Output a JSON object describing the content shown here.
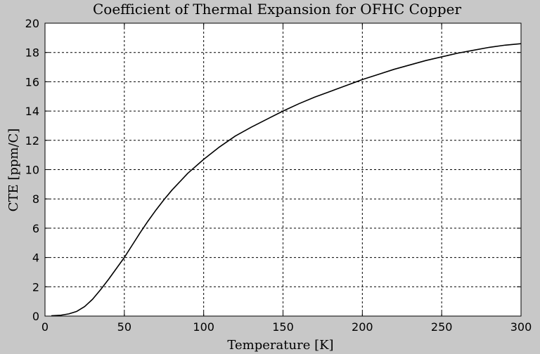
{
  "chart_data": {
    "type": "line",
    "title": "Coefficient of Thermal Expansion for OFHC Copper",
    "xlabel": "Temperature [K]",
    "ylabel": "CTE [ppm/C]",
    "xlim": [
      0,
      300
    ],
    "ylim": [
      0,
      20
    ],
    "xticks": [
      0,
      50,
      100,
      150,
      200,
      250,
      300
    ],
    "yticks": [
      0,
      2,
      4,
      6,
      8,
      10,
      12,
      14,
      16,
      18,
      20
    ],
    "grid": true,
    "legend": "none",
    "colors": {
      "background": "#c8c8c8",
      "plot_area": "#ffffff",
      "line": "#000000",
      "grid": "#000000"
    },
    "series": [
      {
        "x": [
          4,
          10,
          15,
          20,
          25,
          30,
          35,
          40,
          45,
          50,
          55,
          60,
          65,
          70,
          75,
          80,
          90,
          100,
          110,
          120,
          130,
          140,
          150,
          160,
          170,
          180,
          190,
          200,
          210,
          220,
          230,
          240,
          250,
          260,
          270,
          280,
          290,
          300
        ],
        "y": [
          0.02,
          0.06,
          0.15,
          0.32,
          0.65,
          1.15,
          1.8,
          2.5,
          3.25,
          4.0,
          4.85,
          5.7,
          6.5,
          7.25,
          7.95,
          8.6,
          9.75,
          10.7,
          11.55,
          12.3,
          12.9,
          13.45,
          14.0,
          14.5,
          14.95,
          15.35,
          15.75,
          16.15,
          16.5,
          16.85,
          17.15,
          17.45,
          17.7,
          17.95,
          18.15,
          18.35,
          18.5,
          18.6
        ]
      }
    ]
  }
}
